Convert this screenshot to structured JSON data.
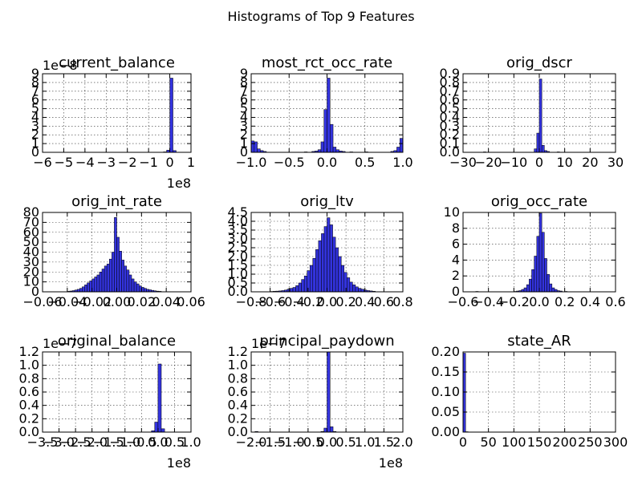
{
  "figure": {
    "title": "Histograms of Top 9 Features",
    "bar_color": "#3333dd"
  },
  "chart_data": [
    {
      "type": "bar",
      "title": "current_balance",
      "xlim": [
        -6,
        1
      ],
      "ylim": [
        0,
        9
      ],
      "xticks": [
        -6,
        -5,
        -4,
        -3,
        -2,
        -1,
        0,
        1
      ],
      "xtick_labels": [
        "−6",
        "−5",
        "−4",
        "−3",
        "−2",
        "−1",
        "0",
        "1"
      ],
      "yticks": [
        0,
        1,
        2,
        3,
        4,
        5,
        6,
        7,
        8,
        9
      ],
      "ytick_labels": [
        "0",
        "1",
        "2",
        "3",
        "4",
        "5",
        "6",
        "7",
        "8",
        "9"
      ],
      "x_offset_label": "1e8",
      "y_offset_label": "1e−8",
      "bins": [
        [
          -5.9,
          -5.75,
          0.02
        ],
        [
          -0.3,
          -0.15,
          0.05
        ],
        [
          -0.15,
          0.0,
          0.25
        ],
        [
          0.0,
          0.15,
          8.5
        ],
        [
          0.15,
          0.3,
          0.2
        ]
      ]
    },
    {
      "type": "bar",
      "title": "most_rct_occ_rate",
      "xlim": [
        -1.0,
        1.0
      ],
      "ylim": [
        0,
        9
      ],
      "xticks": [
        -1.0,
        -0.5,
        0.0,
        0.5,
        1.0
      ],
      "xtick_labels": [
        "−1.0",
        "−0.5",
        "0.0",
        "0.5",
        "1.0"
      ],
      "yticks": [
        0,
        1,
        2,
        3,
        4,
        5,
        6,
        7,
        8,
        9
      ],
      "ytick_labels": [
        "0",
        "1",
        "2",
        "3",
        "4",
        "5",
        "6",
        "7",
        "8",
        "9"
      ],
      "bins": [
        [
          -1.0,
          -0.96,
          1.3
        ],
        [
          -0.96,
          -0.92,
          1.2
        ],
        [
          -0.92,
          -0.88,
          0.4
        ],
        [
          -0.88,
          -0.84,
          0.2
        ],
        [
          -0.84,
          -0.8,
          0.1
        ],
        [
          -0.3,
          -0.26,
          0.05
        ],
        [
          -0.2,
          -0.16,
          0.1
        ],
        [
          -0.16,
          -0.12,
          0.15
        ],
        [
          -0.12,
          -0.08,
          0.3
        ],
        [
          -0.08,
          -0.04,
          1.2
        ],
        [
          -0.04,
          0.0,
          4.9
        ],
        [
          0.0,
          0.04,
          8.5
        ],
        [
          0.04,
          0.08,
          3.2
        ],
        [
          0.08,
          0.12,
          0.6
        ],
        [
          0.12,
          0.16,
          0.3
        ],
        [
          0.16,
          0.2,
          0.15
        ],
        [
          0.2,
          0.24,
          0.1
        ],
        [
          0.3,
          0.34,
          0.05
        ],
        [
          0.5,
          0.54,
          0.05
        ],
        [
          0.84,
          0.88,
          0.1
        ],
        [
          0.88,
          0.92,
          0.2
        ],
        [
          0.92,
          0.96,
          0.6
        ],
        [
          0.96,
          1.0,
          1.6
        ]
      ]
    },
    {
      "type": "bar",
      "title": "orig_dscr",
      "xlim": [
        -30,
        30
      ],
      "ylim": [
        0,
        0.9
      ],
      "xticks": [
        -30,
        -20,
        -10,
        0,
        10,
        20,
        30
      ],
      "xtick_labels": [
        "−30",
        "−20",
        "−10",
        "0",
        "10",
        "20",
        "30"
      ],
      "yticks": [
        0.0,
        0.1,
        0.2,
        0.3,
        0.4,
        0.5,
        0.6,
        0.7,
        0.8,
        0.9
      ],
      "ytick_labels": [
        "0.0",
        "0.1",
        "0.2",
        "0.3",
        "0.4",
        "0.5",
        "0.6",
        "0.7",
        "0.8",
        "0.9"
      ],
      "bins": [
        [
          -22,
          -21,
          0.005
        ],
        [
          -2,
          -1,
          0.04
        ],
        [
          -1,
          0,
          0.22
        ],
        [
          0,
          1,
          0.84
        ],
        [
          1,
          2,
          0.08
        ],
        [
          2,
          3,
          0.02
        ],
        [
          3,
          4,
          0.01
        ],
        [
          7,
          8,
          0.005
        ]
      ]
    },
    {
      "type": "bar",
      "title": "orig_int_rate",
      "xlim": [
        -0.06,
        0.06
      ],
      "ylim": [
        0,
        80
      ],
      "xticks": [
        -0.06,
        -0.04,
        -0.02,
        0.0,
        0.02,
        0.04,
        0.06
      ],
      "xtick_labels": [
        "−0.06",
        "−0.04",
        "−0.02",
        "0.00",
        "0.02",
        "0.04",
        "0.06"
      ],
      "yticks": [
        0,
        10,
        20,
        30,
        40,
        50,
        60,
        70,
        80
      ],
      "ytick_labels": [
        "0",
        "10",
        "20",
        "30",
        "40",
        "50",
        "60",
        "70",
        "80"
      ],
      "bins": [
        [
          -0.04,
          -0.038,
          0.5
        ],
        [
          -0.038,
          -0.036,
          0.8
        ],
        [
          -0.036,
          -0.034,
          1.2
        ],
        [
          -0.034,
          -0.032,
          1.8
        ],
        [
          -0.032,
          -0.03,
          2.5
        ],
        [
          -0.03,
          -0.028,
          3.5
        ],
        [
          -0.028,
          -0.026,
          5
        ],
        [
          -0.026,
          -0.024,
          7
        ],
        [
          -0.024,
          -0.022,
          9
        ],
        [
          -0.022,
          -0.02,
          11
        ],
        [
          -0.02,
          -0.018,
          13
        ],
        [
          -0.018,
          -0.016,
          15
        ],
        [
          -0.016,
          -0.014,
          17
        ],
        [
          -0.014,
          -0.012,
          20
        ],
        [
          -0.012,
          -0.01,
          23
        ],
        [
          -0.01,
          -0.008,
          26
        ],
        [
          -0.008,
          -0.006,
          28
        ],
        [
          -0.006,
          -0.004,
          33
        ],
        [
          -0.004,
          -0.002,
          40
        ],
        [
          -0.002,
          0.0,
          75
        ],
        [
          0.0,
          0.002,
          55
        ],
        [
          0.002,
          0.004,
          41
        ],
        [
          0.004,
          0.006,
          32
        ],
        [
          0.006,
          0.008,
          26
        ],
        [
          0.008,
          0.01,
          22
        ],
        [
          0.01,
          0.012,
          17
        ],
        [
          0.012,
          0.014,
          13
        ],
        [
          0.014,
          0.016,
          10
        ],
        [
          0.016,
          0.018,
          8
        ],
        [
          0.018,
          0.02,
          6
        ],
        [
          0.02,
          0.022,
          4.5
        ],
        [
          0.022,
          0.024,
          3.5
        ],
        [
          0.024,
          0.026,
          2.5
        ],
        [
          0.026,
          0.028,
          2
        ],
        [
          0.028,
          0.03,
          1.5
        ],
        [
          0.03,
          0.032,
          1
        ],
        [
          0.032,
          0.034,
          0.7
        ],
        [
          0.034,
          0.036,
          0.5
        ]
      ]
    },
    {
      "type": "bar",
      "title": "orig_ltv",
      "xlim": [
        -0.8,
        0.8
      ],
      "ylim": [
        0,
        4.5
      ],
      "xticks": [
        -0.8,
        -0.6,
        -0.4,
        -0.2,
        0.0,
        0.2,
        0.4,
        0.6,
        0.8
      ],
      "xtick_labels": [
        "−0.8",
        "−0.6",
        "−0.4",
        "−0.2",
        "0.0",
        "0.2",
        "0.4",
        "0.6",
        "0.8"
      ],
      "yticks": [
        0.0,
        0.5,
        1.0,
        1.5,
        2.0,
        2.5,
        3.0,
        3.5,
        4.0,
        4.5
      ],
      "ytick_labels": [
        "0.0",
        "0.5",
        "1.0",
        "1.5",
        "2.0",
        "2.5",
        "3.0",
        "3.5",
        "4.0",
        "4.5"
      ],
      "bins": [
        [
          -0.6,
          -0.57,
          0.02
        ],
        [
          -0.57,
          -0.54,
          0.03
        ],
        [
          -0.54,
          -0.51,
          0.04
        ],
        [
          -0.51,
          -0.48,
          0.05
        ],
        [
          -0.48,
          -0.45,
          0.07
        ],
        [
          -0.45,
          -0.42,
          0.1
        ],
        [
          -0.42,
          -0.39,
          0.15
        ],
        [
          -0.39,
          -0.36,
          0.2
        ],
        [
          -0.36,
          -0.33,
          0.25
        ],
        [
          -0.33,
          -0.3,
          0.35
        ],
        [
          -0.3,
          -0.27,
          0.5
        ],
        [
          -0.27,
          -0.24,
          0.7
        ],
        [
          -0.24,
          -0.21,
          0.9
        ],
        [
          -0.21,
          -0.18,
          1.2
        ],
        [
          -0.18,
          -0.15,
          1.5
        ],
        [
          -0.15,
          -0.12,
          1.9
        ],
        [
          -0.12,
          -0.09,
          2.4
        ],
        [
          -0.09,
          -0.06,
          2.9
        ],
        [
          -0.06,
          -0.03,
          3.3
        ],
        [
          -0.03,
          0.0,
          3.7
        ],
        [
          0.0,
          0.03,
          4.2
        ],
        [
          0.03,
          0.06,
          3.8
        ],
        [
          0.06,
          0.09,
          3.1
        ],
        [
          0.09,
          0.12,
          2.5
        ],
        [
          0.12,
          0.15,
          2.0
        ],
        [
          0.15,
          0.18,
          1.5
        ],
        [
          0.18,
          0.21,
          1.1
        ],
        [
          0.21,
          0.24,
          0.8
        ],
        [
          0.24,
          0.27,
          0.55
        ],
        [
          0.27,
          0.3,
          0.4
        ],
        [
          0.3,
          0.33,
          0.28
        ],
        [
          0.33,
          0.36,
          0.2
        ],
        [
          0.36,
          0.39,
          0.15
        ],
        [
          0.39,
          0.42,
          0.1
        ],
        [
          0.42,
          0.45,
          0.07
        ],
        [
          0.45,
          0.48,
          0.05
        ],
        [
          0.48,
          0.51,
          0.03
        ]
      ]
    },
    {
      "type": "bar",
      "title": "orig_occ_rate",
      "xlim": [
        -0.6,
        0.6
      ],
      "ylim": [
        0,
        10
      ],
      "xticks": [
        -0.6,
        -0.4,
        -0.2,
        0.0,
        0.2,
        0.4,
        0.6
      ],
      "xtick_labels": [
        "−0.6",
        "−0.4",
        "−0.2",
        "0.0",
        "0.2",
        "0.4",
        "0.6"
      ],
      "yticks": [
        0,
        2,
        4,
        6,
        8,
        10
      ],
      "ytick_labels": [
        "0",
        "2",
        "4",
        "6",
        "8",
        "10"
      ],
      "bins": [
        [
          -0.5,
          -0.48,
          0.05
        ],
        [
          -0.2,
          -0.18,
          0.05
        ],
        [
          -0.18,
          -0.16,
          0.1
        ],
        [
          -0.16,
          -0.14,
          0.15
        ],
        [
          -0.14,
          -0.12,
          0.3
        ],
        [
          -0.12,
          -0.1,
          0.5
        ],
        [
          -0.1,
          -0.08,
          0.9
        ],
        [
          -0.08,
          -0.06,
          1.6
        ],
        [
          -0.06,
          -0.04,
          2.8
        ],
        [
          -0.04,
          -0.02,
          4.5
        ],
        [
          -0.02,
          0.0,
          7.0
        ],
        [
          0.0,
          0.02,
          9.9
        ],
        [
          0.02,
          0.04,
          7.5
        ],
        [
          0.04,
          0.06,
          4.2
        ],
        [
          0.06,
          0.08,
          2.2
        ],
        [
          0.08,
          0.1,
          1.0
        ],
        [
          0.1,
          0.12,
          0.5
        ],
        [
          0.12,
          0.14,
          0.3
        ],
        [
          0.14,
          0.16,
          0.15
        ],
        [
          0.16,
          0.18,
          0.1
        ],
        [
          0.2,
          0.22,
          0.05
        ]
      ]
    },
    {
      "type": "bar",
      "title": "original_balance",
      "xlim": [
        -3.5,
        1.0
      ],
      "ylim": [
        0,
        1.2
      ],
      "xticks": [
        -3.5,
        -3.0,
        -2.5,
        -2.0,
        -1.5,
        -1.0,
        -0.5,
        0.0,
        0.5,
        1.0
      ],
      "xtick_labels": [
        "−3.5",
        "−3.0",
        "−2.5",
        "−2.0",
        "−1.5",
        "−1.0",
        "−0.5",
        "0.0",
        "0.5",
        "1.0"
      ],
      "yticks": [
        0.0,
        0.2,
        0.4,
        0.6,
        0.8,
        1.0,
        1.2
      ],
      "ytick_labels": [
        "0.0",
        "0.2",
        "0.4",
        "0.6",
        "0.8",
        "1.0",
        "1.2"
      ],
      "x_offset_label": "1e8",
      "y_offset_label": "1e−7",
      "bins": [
        [
          -0.2,
          -0.1,
          0.02
        ],
        [
          -0.1,
          0.0,
          0.15
        ],
        [
          0.0,
          0.1,
          1.02
        ],
        [
          0.1,
          0.2,
          0.05
        ]
      ]
    },
    {
      "type": "bar",
      "title": "principal_paydown",
      "xlim": [
        -2.0,
        2.0
      ],
      "ylim": [
        0,
        1.2
      ],
      "xticks": [
        -2.0,
        -1.5,
        -1.0,
        -0.5,
        0.0,
        0.5,
        1.0,
        1.5,
        2.0
      ],
      "xtick_labels": [
        "−2.0",
        "−1.5",
        "−1.0",
        "−0.5",
        "0.0",
        "0.5",
        "1.0",
        "1.5",
        "2.0"
      ],
      "yticks": [
        0.0,
        0.2,
        0.4,
        0.6,
        0.8,
        1.0,
        1.2
      ],
      "ytick_labels": [
        "0.0",
        "0.2",
        "0.4",
        "0.6",
        "0.8",
        "1.0",
        "1.2"
      ],
      "x_offset_label": "1e8",
      "y_offset_label": "1e−7",
      "bins": [
        [
          -1.9,
          -1.82,
          0.01
        ],
        [
          -0.16,
          -0.08,
          0.01
        ],
        [
          -0.08,
          0.0,
          0.06
        ],
        [
          0.0,
          0.08,
          1.2
        ],
        [
          0.08,
          0.16,
          0.08
        ],
        [
          0.16,
          0.24,
          0.01
        ]
      ]
    },
    {
      "type": "bar",
      "title": "state_AR",
      "xlim": [
        0,
        300
      ],
      "ylim": [
        0,
        0.2
      ],
      "xticks": [
        0,
        50,
        100,
        150,
        200,
        250,
        300
      ],
      "xtick_labels": [
        "0",
        "50",
        "100",
        "150",
        "200",
        "250",
        "300"
      ],
      "yticks": [
        0.0,
        0.05,
        0.1,
        0.15,
        0.2
      ],
      "ytick_labels": [
        "0.00",
        "0.05",
        "0.10",
        "0.15",
        "0.20"
      ],
      "bins": [
        [
          0,
          5,
          0.197
        ],
        [
          5,
          10,
          0.001
        ],
        [
          255,
          260,
          0.0005
        ]
      ]
    }
  ]
}
